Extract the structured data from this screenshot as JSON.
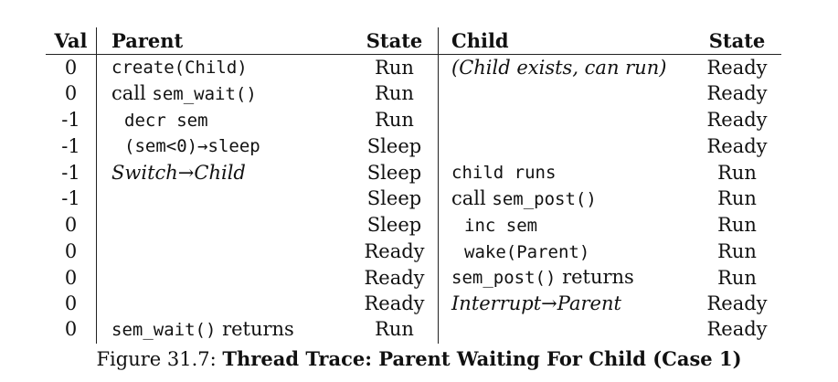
{
  "headers": {
    "val": "Val",
    "parent": "Parent",
    "parent_state": "State",
    "child": "Child",
    "child_state": "State"
  },
  "rows": [
    {
      "val": "0",
      "parent": [
        {
          "t": "create(Child)",
          "s": "mono"
        }
      ],
      "pstate": "Run",
      "child": [
        {
          "t": "(Child exists, can run)",
          "s": "ital"
        }
      ],
      "cstate": "Ready"
    },
    {
      "val": "0",
      "parent": [
        {
          "t": "call ",
          "s": ""
        },
        {
          "t": "sem_wait()",
          "s": "mono"
        }
      ],
      "pstate": "Run",
      "child": [],
      "cstate": "Ready"
    },
    {
      "val": "-1",
      "parent": [
        {
          "t": "decr sem",
          "s": "mono ind"
        }
      ],
      "pstate": "Run",
      "child": [],
      "cstate": "Ready"
    },
    {
      "val": "-1",
      "parent": [
        {
          "t": "(sem<0)→sleep",
          "s": "mono ind"
        }
      ],
      "pstate": "Sleep",
      "child": [],
      "cstate": "Ready"
    },
    {
      "val": "-1",
      "parent": [
        {
          "t": "Switch→Child",
          "s": "ital"
        }
      ],
      "pstate": "Sleep",
      "child": [
        {
          "t": "child runs",
          "s": "mono"
        }
      ],
      "cstate": "Run"
    },
    {
      "val": "-1",
      "parent": [],
      "pstate": "Sleep",
      "child": [
        {
          "t": "call ",
          "s": ""
        },
        {
          "t": "sem_post()",
          "s": "mono"
        }
      ],
      "cstate": "Run"
    },
    {
      "val": "0",
      "parent": [],
      "pstate": "Sleep",
      "child": [
        {
          "t": "inc sem",
          "s": "mono ind"
        }
      ],
      "cstate": "Run"
    },
    {
      "val": "0",
      "parent": [],
      "pstate": "Ready",
      "child": [
        {
          "t": "wake(Parent)",
          "s": "mono ind"
        }
      ],
      "cstate": "Run"
    },
    {
      "val": "0",
      "parent": [],
      "pstate": "Ready",
      "child": [
        {
          "t": "sem_post()",
          "s": "mono"
        },
        {
          "t": " returns",
          "s": ""
        }
      ],
      "cstate": "Run"
    },
    {
      "val": "0",
      "parent": [],
      "pstate": "Ready",
      "child": [
        {
          "t": "Interrupt→Parent",
          "s": "ital"
        }
      ],
      "cstate": "Ready"
    },
    {
      "val": "0",
      "parent": [
        {
          "t": "sem_wait()",
          "s": "mono"
        },
        {
          "t": " returns",
          "s": ""
        }
      ],
      "pstate": "Run",
      "child": [],
      "cstate": "Ready"
    }
  ],
  "caption": {
    "number": "Figure 31.7:",
    "title": "Thread Trace: Parent Waiting For Child (Case 1)"
  }
}
